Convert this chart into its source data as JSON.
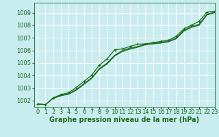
{
  "xlabel": "Graphe pression niveau de la mer (hPa)",
  "xlim": [
    -0.5,
    23
  ],
  "ylim": [
    1001.5,
    1009.8
  ],
  "yticks": [
    1002,
    1003,
    1004,
    1005,
    1006,
    1007,
    1008,
    1009
  ],
  "xticks": [
    0,
    1,
    2,
    3,
    4,
    5,
    6,
    7,
    8,
    9,
    10,
    11,
    12,
    13,
    14,
    15,
    16,
    17,
    18,
    19,
    20,
    21,
    22,
    23
  ],
  "bg_color": "#c9ecf0",
  "grid_color": "#b0d8e0",
  "line_color": "#1a6b1a",
  "series": [
    [
      1001.72,
      1001.68,
      1002.22,
      1002.48,
      1002.62,
      1003.05,
      1003.52,
      1004.02,
      1004.82,
      1005.32,
      1006.05,
      1006.12,
      1006.32,
      1006.5,
      1006.52,
      1006.62,
      1006.72,
      1006.82,
      1007.12,
      1007.72,
      1008.02,
      1008.32,
      1009.05,
      1009.12
    ],
    [
      1001.72,
      1001.68,
      1002.2,
      1002.42,
      1002.55,
      1002.9,
      1003.35,
      1003.82,
      1004.55,
      1005.0,
      1005.62,
      1006.0,
      1006.2,
      1006.32,
      1006.5,
      1006.58,
      1006.65,
      1006.75,
      1007.0,
      1007.62,
      1007.92,
      1008.1,
      1008.9,
      1009.05
    ],
    [
      1001.72,
      1001.68,
      1002.18,
      1002.4,
      1002.52,
      1002.85,
      1003.3,
      1003.78,
      1004.5,
      1004.95,
      1005.58,
      1005.95,
      1006.15,
      1006.28,
      1006.47,
      1006.54,
      1006.6,
      1006.7,
      1006.95,
      1007.57,
      1007.87,
      1008.05,
      1008.85,
      1009.02
    ],
    [
      1001.72,
      1001.68,
      1002.18,
      1002.38,
      1002.5,
      1002.82,
      1003.28,
      1003.75,
      1004.48,
      1004.9,
      1005.55,
      1005.9,
      1006.1,
      1006.25,
      1006.45,
      1006.52,
      1006.58,
      1006.68,
      1006.92,
      1007.53,
      1007.83,
      1008.0,
      1008.82,
      1009.0
    ]
  ],
  "marker_series_idx": [
    0
  ],
  "font_color": "#1a6b1a",
  "label_fontsize": 7,
  "tick_fontsize": 6
}
